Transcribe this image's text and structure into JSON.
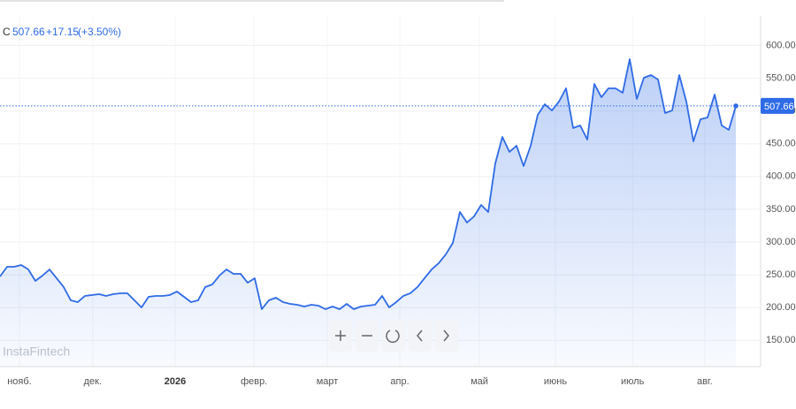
{
  "chart_data": {
    "type": "area",
    "symbol": "С",
    "change": "+17.15",
    "change_pct": "(+3.50%)",
    "watermark": "InstaFintech",
    "series": [
      {
        "color": "#2e6be6",
        "values": [
          247.5,
          262.3,
          262.3,
          265,
          258.2,
          240.7,
          248.8,
          258.2,
          244.8,
          231.3,
          211.1,
          208.4,
          217.8,
          219.2,
          220.5,
          217.8,
          220.5,
          221.9,
          221.9,
          211.1,
          200.3,
          216.5,
          217.8,
          217.8,
          219.2,
          224.5,
          216.5,
          208.4,
          211.1,
          231.3,
          235.3,
          248.8,
          258.2,
          251.5,
          251.5,
          238,
          244.8,
          197.6,
          211.1,
          215.1,
          208.4,
          205.7,
          204.3,
          201.6,
          204.3,
          203,
          197.6,
          201.6,
          197.6,
          205.7,
          197.6,
          201.6,
          203,
          204.3,
          217.8,
          200.3,
          208.4,
          217.8,
          221.9,
          231.3,
          244.8,
          258.2,
          267.7,
          281.1,
          298.7,
          345.8,
          329.7,
          339.1,
          356.6,
          345.8,
          420,
          460.4,
          437.5,
          446.9,
          415.9,
          446.9,
          494.1,
          510.2,
          500.8,
          514.3,
          534.5,
          473.9,
          477.9,
          456.3,
          541.2,
          521,
          534.5,
          534.5,
          527.8,
          579,
          518.3,
          550.7,
          554.7,
          548,
          496.8,
          500.8,
          554.7,
          514.3,
          453.6,
          487.3,
          490,
          525,
          477.9,
          471.2,
          507.66
        ]
      }
    ],
    "xlim": [
      0,
      107.5
    ],
    "xticks": [
      {
        "value": 2.75,
        "label": "нояб."
      },
      {
        "value": 13.1,
        "label": "дек."
      },
      {
        "value": 24.75,
        "label": "2026"
      },
      {
        "value": 35.9,
        "label": "февр."
      },
      {
        "value": 46.25,
        "label": "март"
      },
      {
        "value": 56.5,
        "label": "апр."
      },
      {
        "value": 67.75,
        "label": "май"
      },
      {
        "value": 78.5,
        "label": "июнь"
      },
      {
        "value": 89.4,
        "label": "июль"
      },
      {
        "value": 99.6,
        "label": "авг."
      }
    ],
    "ylim": [
      110,
      645
    ],
    "yticks": [
      {
        "value": 150,
        "label": "150.00"
      },
      {
        "value": 200,
        "label": "200.00"
      },
      {
        "value": 250,
        "label": "250.00"
      },
      {
        "value": 300,
        "label": "300.00"
      },
      {
        "value": 350,
        "label": "350.00"
      },
      {
        "value": 400,
        "label": "400.00"
      },
      {
        "value": 450,
        "label": "450.00"
      },
      {
        "value": 500,
        "label": "500.00"
      },
      {
        "value": 550,
        "label": "550.00"
      },
      {
        "value": 600,
        "label": "600.00"
      }
    ],
    "grid": true
  }
}
